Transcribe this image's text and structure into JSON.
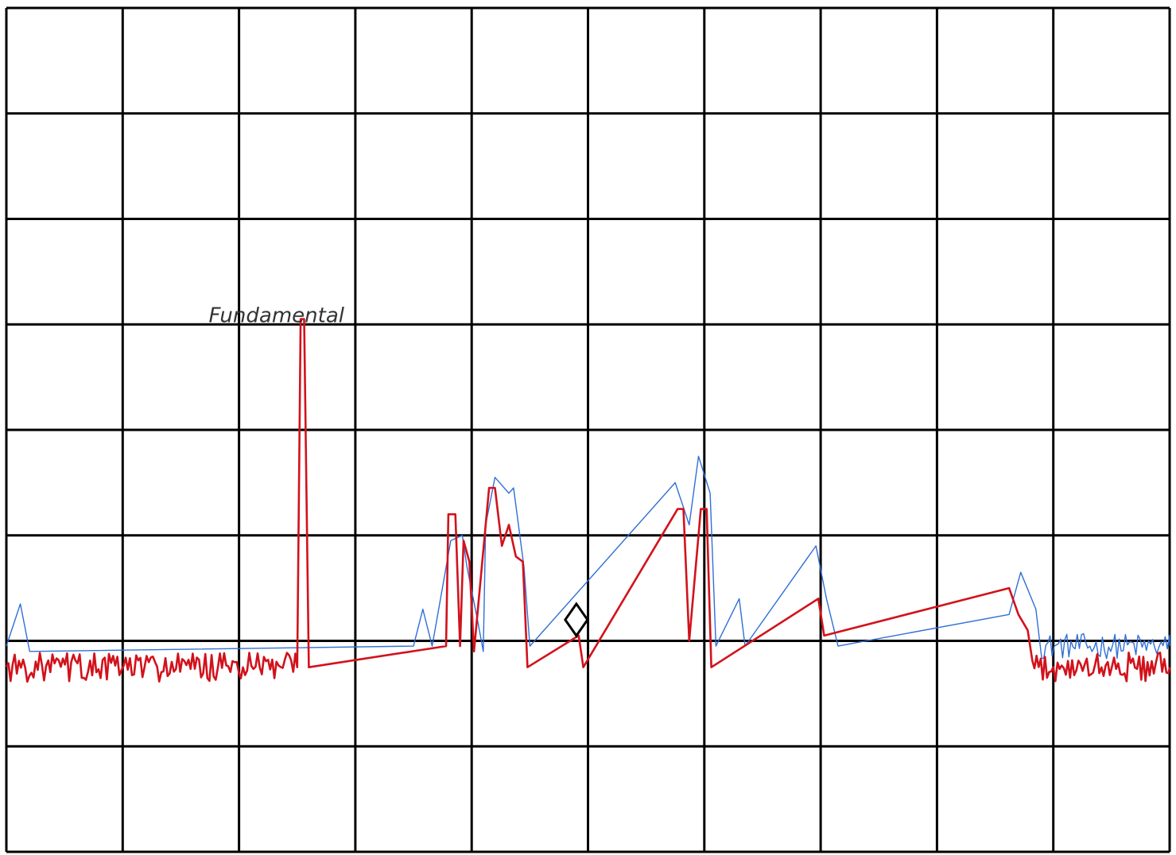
{
  "chart_data": {
    "type": "line",
    "grid": {
      "columns": 10,
      "rows": 8,
      "visible": true
    },
    "xlim": [
      0,
      10
    ],
    "ylim": [
      0,
      8
    ],
    "annotations": [
      {
        "text": "Fundamental",
        "x": 2.15,
        "y": 5.05
      }
    ],
    "marker": {
      "shape": "diamond",
      "x": 4.9,
      "y": 2.2
    },
    "colors": {
      "grid": "#000000",
      "blue_trace": "#2f6fd6",
      "red_trace": "#d2121c"
    },
    "series": [
      {
        "color": "#2f6fd6",
        "noise": {
          "base": 1.95,
          "amplitude": 0.12
        },
        "points": [
          [
            0.0,
            1.95
          ],
          [
            0.12,
            2.35
          ],
          [
            0.2,
            1.9
          ],
          [
            3.5,
            1.95
          ],
          [
            3.58,
            2.3
          ],
          [
            3.66,
            1.95
          ],
          [
            3.82,
            2.95
          ],
          [
            3.92,
            3.0
          ],
          [
            3.96,
            2.7
          ],
          [
            4.05,
            2.2
          ],
          [
            4.1,
            1.9
          ],
          [
            4.12,
            3.1
          ],
          [
            4.2,
            3.55
          ],
          [
            4.32,
            3.4
          ],
          [
            4.36,
            3.45
          ],
          [
            4.45,
            2.7
          ],
          [
            4.5,
            1.95
          ],
          [
            5.75,
            3.5
          ],
          [
            5.87,
            3.1
          ],
          [
            5.95,
            3.75
          ],
          [
            6.05,
            3.4
          ],
          [
            6.1,
            1.95
          ],
          [
            6.3,
            2.4
          ],
          [
            6.35,
            1.95
          ],
          [
            6.96,
            2.9
          ],
          [
            7.05,
            2.4
          ],
          [
            7.15,
            1.95
          ],
          [
            8.62,
            2.25
          ],
          [
            8.72,
            2.65
          ],
          [
            8.85,
            2.3
          ],
          [
            8.9,
            1.95
          ],
          [
            10.0,
            1.95
          ]
        ]
      },
      {
        "color": "#d2121c",
        "noise": {
          "base": 1.75,
          "amplitude": 0.14
        },
        "points": [
          [
            0.0,
            1.75
          ],
          [
            2.5,
            1.75
          ],
          [
            2.53,
            5.05
          ],
          [
            2.56,
            5.05
          ],
          [
            2.6,
            1.75
          ],
          [
            3.78,
            1.95
          ],
          [
            3.8,
            3.2
          ],
          [
            3.86,
            3.2
          ],
          [
            3.9,
            1.95
          ],
          [
            3.93,
            2.95
          ],
          [
            3.98,
            2.75
          ],
          [
            4.02,
            1.9
          ],
          [
            4.15,
            3.45
          ],
          [
            4.2,
            3.45
          ],
          [
            4.26,
            2.9
          ],
          [
            4.32,
            3.1
          ],
          [
            4.38,
            2.8
          ],
          [
            4.44,
            2.75
          ],
          [
            4.48,
            1.75
          ],
          [
            4.92,
            2.05
          ],
          [
            4.96,
            1.75
          ],
          [
            5.77,
            3.25
          ],
          [
            5.82,
            3.25
          ],
          [
            5.87,
            2.0
          ],
          [
            5.97,
            3.25
          ],
          [
            6.02,
            3.25
          ],
          [
            6.06,
            1.75
          ],
          [
            6.98,
            2.4
          ],
          [
            7.03,
            2.05
          ],
          [
            8.62,
            2.5
          ],
          [
            8.7,
            2.25
          ],
          [
            8.78,
            2.1
          ],
          [
            8.82,
            1.75
          ],
          [
            10.0,
            1.75
          ]
        ]
      }
    ]
  }
}
